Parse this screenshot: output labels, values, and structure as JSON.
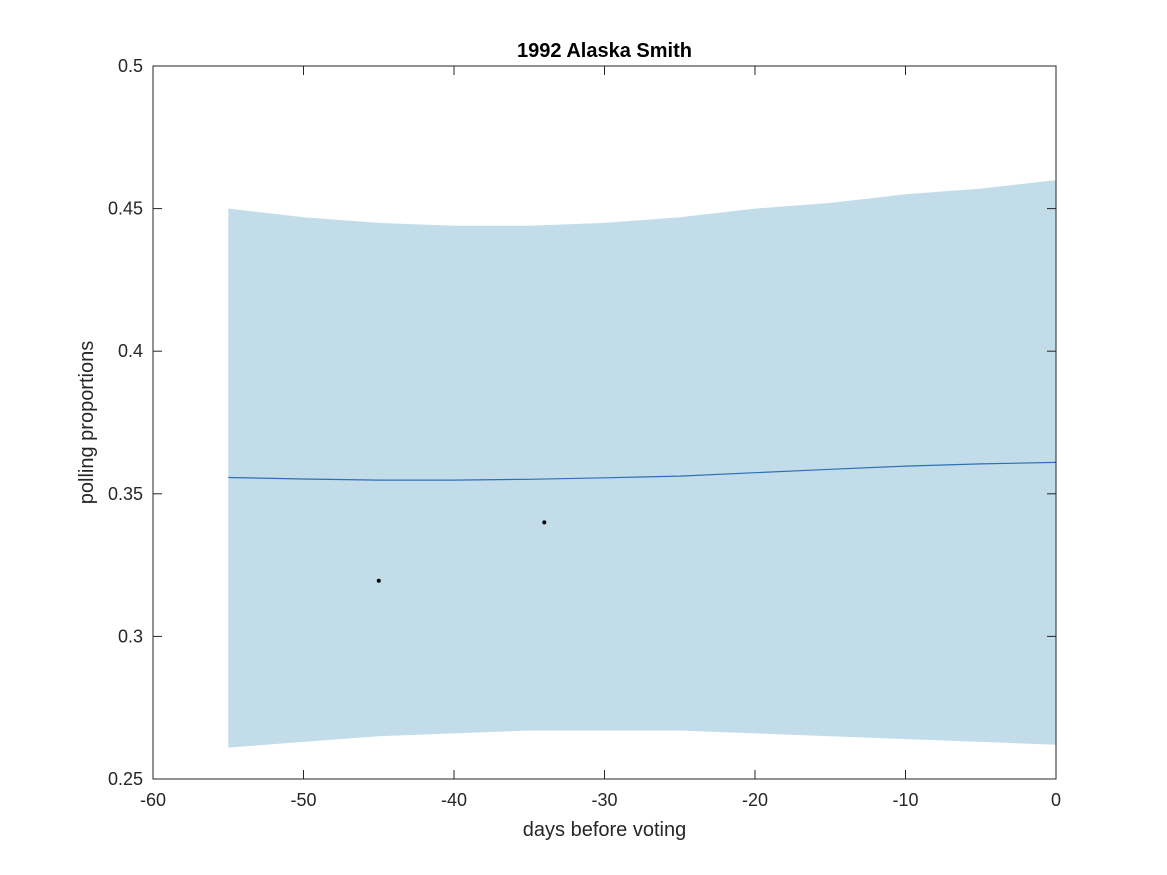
{
  "chart_data": {
    "type": "line",
    "title": "1992 Alaska Smith",
    "xlabel": "days before voting",
    "ylabel": "polling proportions",
    "xlim": [
      -60,
      0
    ],
    "ylim": [
      0.25,
      0.5
    ],
    "xticks": [
      -60,
      -50,
      -40,
      -30,
      -20,
      -10,
      0
    ],
    "yticks": [
      0.25,
      0.3,
      0.35,
      0.4,
      0.45,
      0.5
    ],
    "xtick_labels": [
      "-60",
      "-50",
      "-40",
      "-30",
      "-20",
      "-10",
      "0"
    ],
    "ytick_labels": [
      "0.25",
      "0.3",
      "0.35",
      "0.4",
      "0.45",
      "0.5"
    ],
    "grid": false,
    "band": {
      "x": [
        -55,
        -50,
        -45,
        -40,
        -35,
        -30,
        -25,
        -20,
        -15,
        -10,
        -5,
        0
      ],
      "upper": [
        0.45,
        0.447,
        0.445,
        0.444,
        0.444,
        0.445,
        0.447,
        0.45,
        0.452,
        0.455,
        0.457,
        0.46
      ],
      "lower": [
        0.261,
        0.263,
        0.265,
        0.266,
        0.267,
        0.267,
        0.267,
        0.266,
        0.265,
        0.264,
        0.263,
        0.262
      ],
      "color": "#c2dde9"
    },
    "series": [
      {
        "x": [
          -55,
          -50,
          -45,
          -40,
          -35,
          -30,
          -25,
          -20,
          -15,
          -10,
          -5,
          0
        ],
        "values": [
          0.3557,
          0.3552,
          0.3548,
          0.3548,
          0.3551,
          0.3556,
          0.3562,
          0.3574,
          0.3586,
          0.3597,
          0.3605,
          0.361
        ],
        "color": "#2f6fb5"
      }
    ],
    "points": {
      "x": [
        -45,
        -34
      ],
      "y": [
        0.3195,
        0.34
      ],
      "color": "#000000"
    }
  }
}
